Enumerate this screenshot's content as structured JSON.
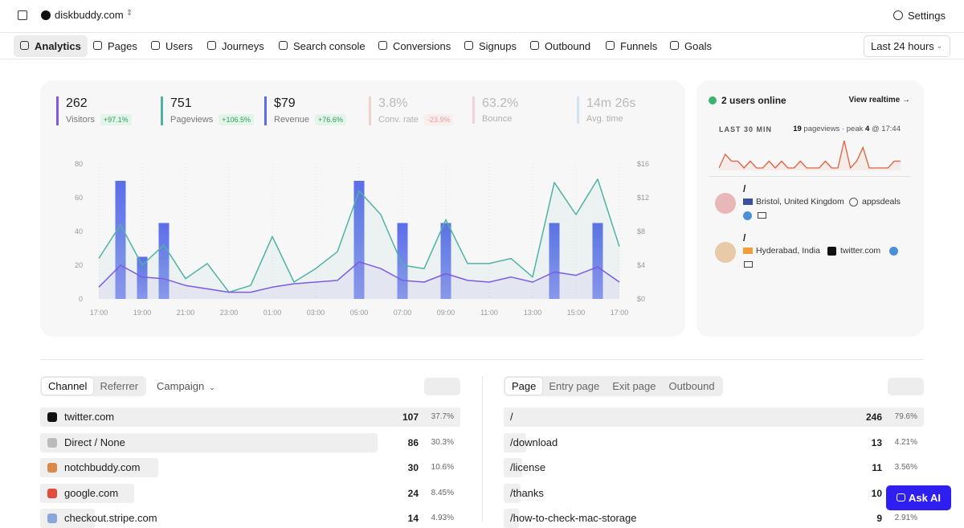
{
  "header": {
    "site": "diskbuddy.com",
    "settings": "Settings"
  },
  "nav": {
    "tabs": [
      "Analytics",
      "Pages",
      "Users",
      "Journeys",
      "Search console",
      "Conversions",
      "Signups",
      "Outbound",
      "Funnels",
      "Goals"
    ],
    "range": "Last 24 hours"
  },
  "metrics": [
    {
      "value": "262",
      "label": "Visitors",
      "change": "+97.1%",
      "color": "#7b5ce0",
      "faded": false
    },
    {
      "value": "751",
      "label": "Pageviews",
      "change": "+106.5%",
      "color": "#4fb3a3",
      "faded": false
    },
    {
      "value": "$79",
      "label": "Revenue",
      "change": "+76.6%",
      "color": "#5b6ee8",
      "faded": false
    },
    {
      "value": "3.8%",
      "label": "Conv. rate",
      "change": "-23.9%",
      "color": "#f0b4a8",
      "faded": true
    },
    {
      "value": "63.2%",
      "label": "Bounce",
      "color": "#e8b4c8",
      "faded": true
    },
    {
      "value": "14m 26s",
      "label": "Avg. time",
      "color": "#b4d4ec",
      "faded": true
    }
  ],
  "chart_data": {
    "type": "line",
    "categories": [
      "17:00",
      null,
      "19:00",
      null,
      "21:00",
      null,
      "23:00",
      null,
      "01:00",
      null,
      "03:00",
      null,
      "05:00",
      null,
      "07:00",
      null,
      "09:00",
      null,
      "11:00",
      null,
      "13:00",
      null,
      "15:00",
      null,
      "17:00"
    ],
    "series": [
      {
        "color": "#4fb3a3",
        "values": [
          24,
          44,
          20,
          32,
          12,
          21,
          4,
          8,
          37,
          10,
          18,
          28,
          64,
          50,
          20,
          18,
          47,
          21,
          21,
          24,
          13,
          69,
          50,
          71,
          31
        ]
      },
      {
        "color": "#7b5ce0",
        "values": [
          7,
          20,
          13,
          12,
          8,
          6,
          4,
          4,
          7,
          9,
          10,
          11,
          22,
          18,
          11,
          10,
          15,
          11,
          10,
          13,
          10,
          16,
          14,
          19,
          10
        ]
      },
      {
        "type": "bar",
        "axis": "y2",
        "color": "#6b7de8",
        "values": [
          0,
          14,
          5,
          9,
          0,
          0,
          0,
          0,
          0,
          0,
          0,
          0,
          14,
          0,
          9,
          0,
          9,
          0,
          0,
          0,
          0,
          9,
          0,
          9,
          0
        ]
      }
    ],
    "ylim": [
      0,
      80
    ],
    "yticks": [
      0,
      20,
      40,
      60,
      80
    ],
    "y2lim": [
      0,
      16
    ],
    "y2ticks": [
      {
        "value": 0,
        "label": "$0"
      },
      {
        "value": 4,
        "label": "$4"
      },
      {
        "value": 8,
        "label": "$8"
      },
      {
        "value": 12,
        "label": "$12"
      },
      {
        "value": 16,
        "label": "$16"
      }
    ]
  },
  "realtime": {
    "online": "2 users online",
    "link": "View realtime →",
    "period": "LAST 30 MIN",
    "pageviews": 19,
    "pageviews_label": "pageviews · peak",
    "peak": 4,
    "peak_time": "@ 17:44",
    "spark": [
      0,
      2,
      1,
      1,
      0,
      1,
      0,
      0,
      1,
      0,
      1,
      0,
      0,
      1,
      0,
      0,
      0,
      1,
      0,
      0,
      4,
      0,
      1,
      3,
      0,
      0,
      0,
      0,
      1,
      1
    ],
    "users": [
      {
        "path": "/",
        "location": "Bristol, United Kingdom",
        "source": "appsdeals"
      },
      {
        "path": "/",
        "location": "Hyderabad, India",
        "source": "twitter.com"
      }
    ]
  },
  "tables": {
    "left": {
      "tabs": [
        "Channel",
        "Referrer"
      ],
      "dropdown": "Campaign",
      "rows": [
        {
          "name": "twitter.com",
          "count": 107,
          "pct": "37.7%"
        },
        {
          "name": "Direct / None",
          "count": 86,
          "pct": "30.3%"
        },
        {
          "name": "notchbuddy.com",
          "count": 30,
          "pct": "10.6%"
        },
        {
          "name": "google.com",
          "count": 24,
          "pct": "8.45%"
        },
        {
          "name": "checkout.stripe.com",
          "count": 14,
          "pct": "4.93%"
        }
      ]
    },
    "right": {
      "tabs": [
        "Page",
        "Entry page",
        "Exit page",
        "Outbound"
      ],
      "rows": [
        {
          "name": "/",
          "count": 246,
          "pct": "79.6%"
        },
        {
          "name": "/download",
          "count": 13,
          "pct": "4.21%"
        },
        {
          "name": "/license",
          "count": 11,
          "pct": "3.56%"
        },
        {
          "name": "/thanks",
          "count": 10
        },
        {
          "name": "/how-to-check-mac-storage",
          "count": 9,
          "pct": "2.91%"
        }
      ]
    }
  },
  "ask_ai": "Ask AI"
}
